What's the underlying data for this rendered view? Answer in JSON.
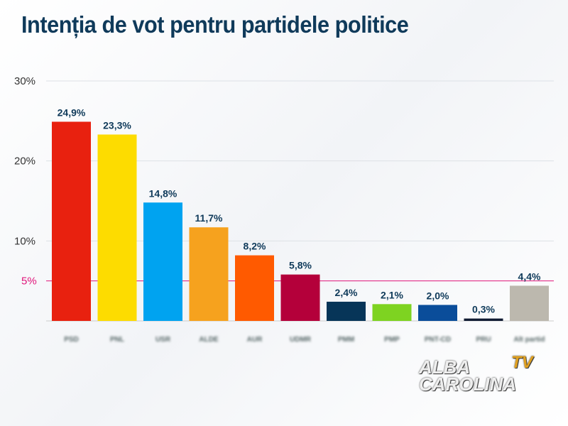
{
  "chart_data": {
    "type": "bar",
    "title": "Intenția de vot pentru partidele politice",
    "categories": [
      "PSD",
      "PNL",
      "USR",
      "ALDE",
      "AUR",
      "UDMR",
      "PMM",
      "PMP",
      "PNT-CD",
      "PRU",
      "Alt partid"
    ],
    "values": [
      24.9,
      23.3,
      14.8,
      11.7,
      8.2,
      5.8,
      2.4,
      2.1,
      2.0,
      0.3,
      4.4
    ],
    "data_labels": [
      "24,9%",
      "23,3%",
      "14,8%",
      "11,7%",
      "8,2%",
      "5,8%",
      "2,4%",
      "2,1%",
      "2,0%",
      "0,3%",
      "4,4%"
    ],
    "colors": [
      "#e8210f",
      "#fddc00",
      "#00a3f0",
      "#f6a21e",
      "#ff5a00",
      "#b4003a",
      "#073558",
      "#7ed321",
      "#0a4d9a",
      "#111c33",
      "#bcb8ae"
    ],
    "yticks": [
      {
        "v": 10,
        "label": "10%"
      },
      {
        "v": 20,
        "label": "20%"
      },
      {
        "v": 30,
        "label": "30%"
      }
    ],
    "reference_line": {
      "v": 5,
      "label": "5%",
      "color": "#e0157a"
    },
    "ylim": [
      0,
      30
    ],
    "grid": true
  },
  "watermark": {
    "line1": "ALBA",
    "line2": "CAROLINA",
    "tv": "TV"
  }
}
